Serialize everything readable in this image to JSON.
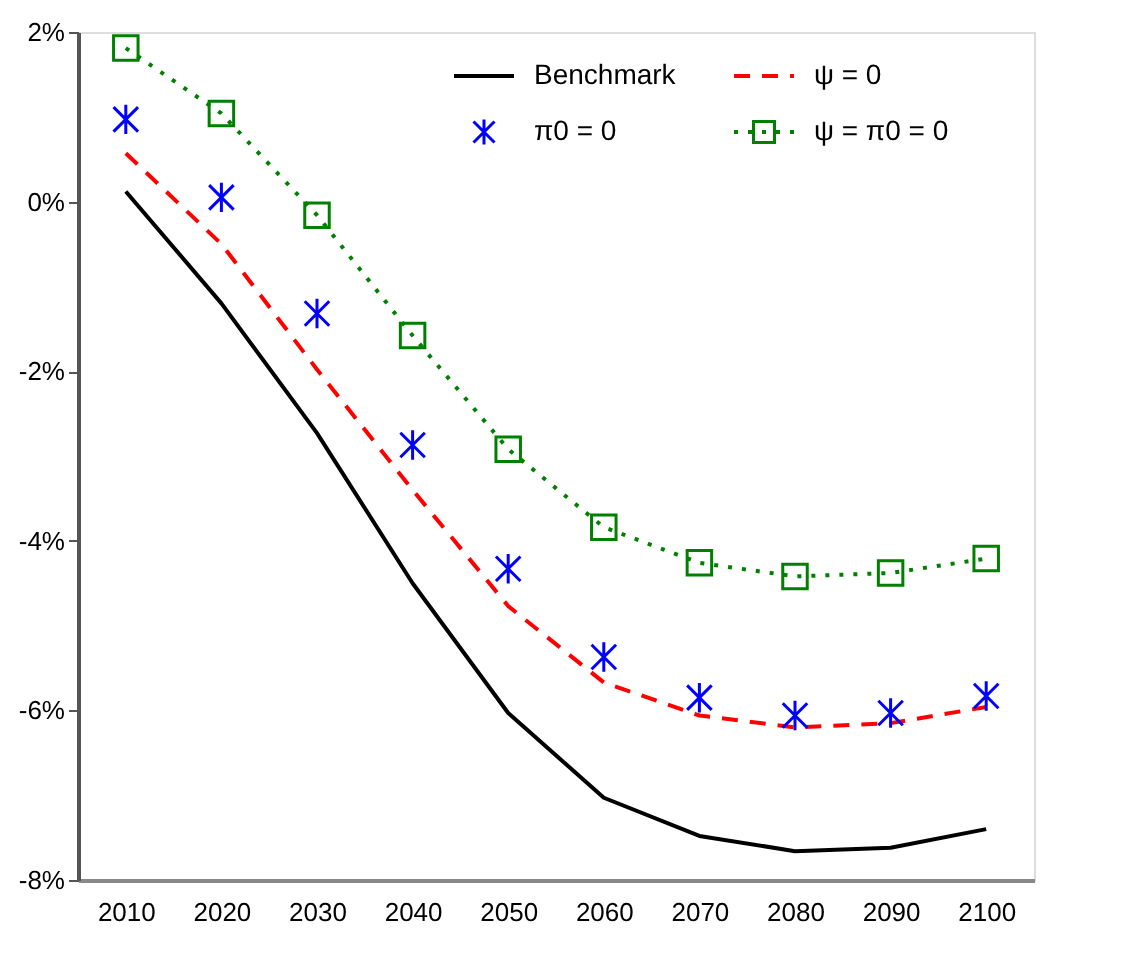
{
  "chart_data": {
    "type": "line",
    "categories": [
      "2010",
      "2020",
      "2030",
      "2040",
      "2050",
      "2060",
      "2070",
      "2080",
      "2090",
      "2100"
    ],
    "series": [
      {
        "name": "Benchmark",
        "color": "#000000",
        "line_style": "solid",
        "marker": "none",
        "values": [
          0.12,
          -1.2,
          -2.73,
          -4.5,
          -6.03,
          -7.03,
          -7.48,
          -7.66,
          -7.62,
          -7.4
        ]
      },
      {
        "name": "ψ = 0",
        "color": "#ff0000",
        "line_style": "dashed",
        "marker": "none",
        "values": [
          0.57,
          -0.5,
          -1.98,
          -3.4,
          -4.77,
          -5.67,
          -6.06,
          -6.2,
          -6.15,
          -5.96
        ]
      },
      {
        "name": "π0 = 0",
        "type": "scatter",
        "color": "#0000ff",
        "marker": "cross",
        "values": [
          0.97,
          0.05,
          -1.32,
          -2.87,
          -4.33,
          -5.37,
          -5.85,
          -6.06,
          -6.03,
          -5.83
        ]
      },
      {
        "name": "ψ = π0 = 0",
        "color": "#008000",
        "line_style": "dotted",
        "marker": "square",
        "values": [
          1.81,
          1.04,
          -0.16,
          -1.58,
          -2.92,
          -3.84,
          -4.26,
          -4.42,
          -4.38,
          -4.21
        ]
      }
    ],
    "ylim": [
      -8,
      2
    ],
    "yticks": [
      {
        "value": -8,
        "label": "-8%"
      },
      {
        "value": -6,
        "label": "-6%"
      },
      {
        "value": -4,
        "label": "-4%"
      },
      {
        "value": -2,
        "label": "-2%"
      },
      {
        "value": 0,
        "label": "0%"
      },
      {
        "value": 2,
        "label": "2%"
      }
    ],
    "grid": false,
    "legend": "top right"
  }
}
